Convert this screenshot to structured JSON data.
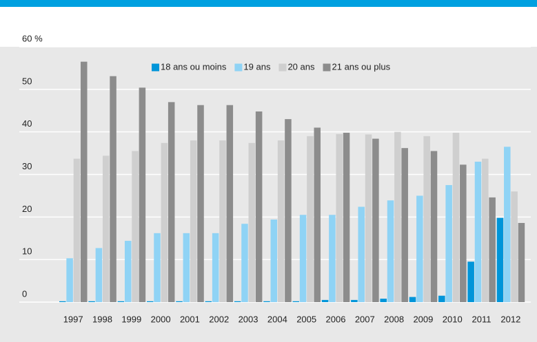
{
  "chart_data": {
    "type": "bar",
    "categories": [
      "1997",
      "1998",
      "1999",
      "2000",
      "2001",
      "2002",
      "2003",
      "2004",
      "2005",
      "2006",
      "2007",
      "2008",
      "2009",
      "2010",
      "2011",
      "2012"
    ],
    "series": [
      {
        "name": "18 ans ou moins",
        "color": "#0095d9",
        "values": [
          0.2,
          0.2,
          0.2,
          0.2,
          0.2,
          0.2,
          0.2,
          0.2,
          0.2,
          0.5,
          0.5,
          0.8,
          1.2,
          1.5,
          9.5,
          19.8
        ]
      },
      {
        "name": "19 ans",
        "color": "#8fd3f5",
        "values": [
          10.3,
          12.7,
          14.4,
          16.2,
          16.2,
          16.2,
          18.4,
          19.4,
          20.5,
          20.5,
          22.4,
          23.9,
          25.0,
          27.5,
          33.0,
          36.5
        ]
      },
      {
        "name": "20 ans",
        "color": "#cfcfcf",
        "values": [
          33.7,
          34.4,
          35.5,
          37.4,
          38.0,
          38.0,
          37.4,
          38.0,
          39.0,
          39.5,
          39.4,
          40.0,
          39.0,
          39.8,
          33.7,
          26.0
        ]
      },
      {
        "name": "21 ans ou plus",
        "color": "#8c8c8c",
        "values": [
          56.5,
          53.1,
          50.4,
          47.0,
          46.3,
          46.3,
          44.8,
          43.0,
          41.0,
          39.8,
          38.4,
          36.2,
          35.5,
          32.3,
          24.6,
          18.6
        ]
      }
    ],
    "ylim": [
      0,
      60
    ],
    "yticks": [
      0,
      10,
      20,
      30,
      40,
      50,
      {
        "value": 60,
        "label": "60 %"
      }
    ],
    "grid": true,
    "legend": "top"
  }
}
